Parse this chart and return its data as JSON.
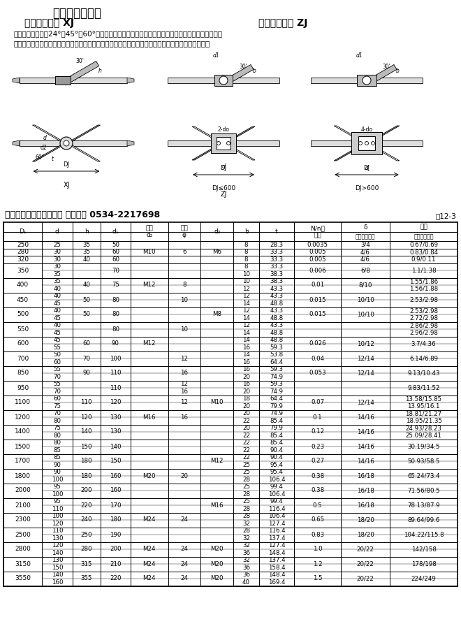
{
  "title": "斜叶桨式搅拌器",
  "subtitle_left": "斜叶整体桨式 XJ",
  "subtitle_right": "斜叶可拆桨式 ZJ",
  "desc1": "此搅拌器桨叶可成24°、45°或60°倾角，有轴向分流，径向分流，流型比平直叶桨式复杂，排出能量",
  "desc2": "比平直桨高，综合效果更好，适用过程相同，因此应用频率比平直叶桨式高，运行条件同平直叶桨式。",
  "table_title": "斜叶桨式搅拌器主要尺寸 鸿达搅拌 0534-2217698",
  "table_number": "表12-3",
  "bg_color": "#ffffff",
  "rows_data": [
    [
      "250",
      [
        "25"
      ],
      [
        "35"
      ],
      [
        "50"
      ],
      [
        ""
      ],
      [
        ""
      ],
      [
        ""
      ],
      [
        "8"
      ],
      [
        "28.3"
      ],
      [
        "0.0035"
      ],
      [
        "3/4"
      ],
      [
        "0.67/0.69"
      ]
    ],
    [
      "280",
      [
        "30"
      ],
      [
        "35"
      ],
      [
        "60"
      ],
      [
        "M10"
      ],
      [
        "6"
      ],
      [
        "M6"
      ],
      [
        "8"
      ],
      [
        "33.3"
      ],
      [
        "0.005"
      ],
      [
        "4/6"
      ],
      [
        "0.83/0.84"
      ]
    ],
    [
      "320",
      [
        "30"
      ],
      [
        "40"
      ],
      [
        "60"
      ],
      [
        ""
      ],
      [
        ""
      ],
      [
        ""
      ],
      [
        "8"
      ],
      [
        "33.3"
      ],
      [
        "0.005"
      ],
      [
        "4/6"
      ],
      [
        "0.9/0.11"
      ]
    ],
    [
      "350",
      [
        "30",
        "35"
      ],
      [
        ""
      ],
      [
        "70"
      ],
      [
        ""
      ],
      [
        ""
      ],
      [
        ""
      ],
      [
        "8",
        "10"
      ],
      [
        "33.3",
        "38.3"
      ],
      [
        "0.006"
      ],
      [
        "6/8"
      ],
      [
        "1.1/1.38"
      ]
    ],
    [
      "400",
      [
        "35",
        "40"
      ],
      [
        "40"
      ],
      [
        "75"
      ],
      [
        "M12"
      ],
      [
        "8"
      ],
      [
        ""
      ],
      [
        "10",
        "12"
      ],
      [
        "38.3",
        "43.3"
      ],
      [
        "0.01"
      ],
      [
        "8/10"
      ],
      [
        "1.55/1.86",
        "1.56/1.88"
      ]
    ],
    [
      "450",
      [
        "40",
        "45"
      ],
      [
        "50"
      ],
      [
        "80"
      ],
      [
        ""
      ],
      [
        "10"
      ],
      [
        ""
      ],
      [
        "12",
        "14"
      ],
      [
        "43.3",
        "48.8"
      ],
      [
        "0.015"
      ],
      [
        "10/10"
      ],
      [
        "2.53/2.98"
      ]
    ],
    [
      "500",
      [
        "40",
        "45"
      ],
      [
        "50"
      ],
      [
        "80"
      ],
      [
        ""
      ],
      [
        ""
      ],
      [
        "M8"
      ],
      [
        "12",
        "14"
      ],
      [
        "43.3",
        "48.8"
      ],
      [
        "0.015"
      ],
      [
        "10/10"
      ],
      [
        "2.53/2.98",
        "2.72/2.98"
      ]
    ],
    [
      "550",
      [
        "40",
        "45"
      ],
      [
        ""
      ],
      [
        "80"
      ],
      [
        ""
      ],
      [
        "10"
      ],
      [
        ""
      ],
      [
        "12",
        "14"
      ],
      [
        "43.3",
        "48.8"
      ],
      [
        ""
      ],
      [
        ""
      ],
      [
        "2.86/2.98",
        "2.96/2.98"
      ]
    ],
    [
      "600",
      [
        "45",
        "55"
      ],
      [
        "60"
      ],
      [
        "90"
      ],
      [
        "M12"
      ],
      [
        ""
      ],
      [
        ""
      ],
      [
        "14",
        "16"
      ],
      [
        "48.8",
        "59.3"
      ],
      [
        "0.026"
      ],
      [
        "10/12"
      ],
      [
        "3.7/4.36"
      ]
    ],
    [
      "700",
      [
        "50",
        "60"
      ],
      [
        "70"
      ],
      [
        "100"
      ],
      [
        ""
      ],
      [
        "12"
      ],
      [
        ""
      ],
      [
        "14",
        "16"
      ],
      [
        "53.8",
        "64.4"
      ],
      [
        "0.04"
      ],
      [
        "12/14"
      ],
      [
        "6.14/6.89"
      ]
    ],
    [
      "850",
      [
        "55",
        "70"
      ],
      [
        "90"
      ],
      [
        "110"
      ],
      [
        ""
      ],
      [
        "16"
      ],
      [
        ""
      ],
      [
        "16",
        "20"
      ],
      [
        "59.3",
        "74.9"
      ],
      [
        "0.053"
      ],
      [
        "12/14"
      ],
      [
        "9.13/10.43"
      ]
    ],
    [
      "950",
      [
        "55",
        "70"
      ],
      [
        ""
      ],
      [
        "110"
      ],
      [
        ""
      ],
      [
        "12",
        "16"
      ],
      [
        ""
      ],
      [
        "16",
        "20"
      ],
      [
        "59.3",
        "74.9"
      ],
      [
        ""
      ],
      [
        ""
      ],
      [
        "9.83/11.52"
      ]
    ],
    [
      "1100",
      [
        "60",
        "75"
      ],
      [
        "110"
      ],
      [
        "120"
      ],
      [
        ""
      ],
      [
        "12"
      ],
      [
        "M10"
      ],
      [
        "18",
        "20"
      ],
      [
        "64.4",
        "79.9"
      ],
      [
        "0.07"
      ],
      [
        "12/14"
      ],
      [
        "13.58/15.85",
        "13.95/16.1"
      ]
    ],
    [
      "1200",
      [
        "70",
        "80"
      ],
      [
        "120"
      ],
      [
        "130"
      ],
      [
        "M16"
      ],
      [
        "16"
      ],
      [
        ""
      ],
      [
        "20",
        "22"
      ],
      [
        "74.9",
        "85.4"
      ],
      [
        "0.1"
      ],
      [
        "14/16"
      ],
      [
        "18.81/21.27",
        "18.95/21.35"
      ]
    ],
    [
      "1400",
      [
        "75",
        "80"
      ],
      [
        "140"
      ],
      [
        "130"
      ],
      [
        ""
      ],
      [
        ""
      ],
      [
        ""
      ],
      [
        "20",
        "22"
      ],
      [
        "79.9",
        "85.4"
      ],
      [
        "0.12"
      ],
      [
        "14/16"
      ],
      [
        "24.93/28.23",
        "25.09/28.41"
      ]
    ],
    [
      "1500",
      [
        "80",
        "85"
      ],
      [
        "150"
      ],
      [
        "140"
      ],
      [
        ""
      ],
      [
        ""
      ],
      [
        ""
      ],
      [
        "22",
        "22"
      ],
      [
        "85.4",
        "90.4"
      ],
      [
        "0.23"
      ],
      [
        "14/16"
      ],
      [
        "30.19/34.5"
      ]
    ],
    [
      "1700",
      [
        "85",
        "90"
      ],
      [
        "180"
      ],
      [
        "150"
      ],
      [
        ""
      ],
      [
        ""
      ],
      [
        "M12"
      ],
      [
        "22",
        "25"
      ],
      [
        "90.4",
        "95.4"
      ],
      [
        "0.27"
      ],
      [
        "14/16"
      ],
      [
        "50.93/58.5"
      ]
    ],
    [
      "1800",
      [
        "90",
        "100"
      ],
      [
        "180"
      ],
      [
        "160"
      ],
      [
        "M20"
      ],
      [
        "20"
      ],
      [
        ""
      ],
      [
        "25",
        "28"
      ],
      [
        "95.4",
        "106.4"
      ],
      [
        "0.38"
      ],
      [
        "16/18"
      ],
      [
        "65.24/73.4"
      ]
    ],
    [
      "2000",
      [
        "95",
        "100"
      ],
      [
        "200"
      ],
      [
        "160"
      ],
      [
        ""
      ],
      [
        ""
      ],
      [
        ""
      ],
      [
        "25",
        "28"
      ],
      [
        "99.4",
        "106.4"
      ],
      [
        "0.38"
      ],
      [
        "16/18"
      ],
      [
        "71.56/80.5"
      ]
    ],
    [
      "2100",
      [
        "95",
        "110"
      ],
      [
        "220"
      ],
      [
        "170"
      ],
      [
        ""
      ],
      [
        ""
      ],
      [
        "M16"
      ],
      [
        "25",
        "28"
      ],
      [
        "99.4",
        "116.4"
      ],
      [
        "0.5"
      ],
      [
        "16/18"
      ],
      [
        "78.13/87.9"
      ]
    ],
    [
      "2300",
      [
        "100",
        "120"
      ],
      [
        "240"
      ],
      [
        "180"
      ],
      [
        "M24"
      ],
      [
        "24"
      ],
      [
        ""
      ],
      [
        "28",
        "32"
      ],
      [
        "106.4",
        "127.4"
      ],
      [
        "0.65"
      ],
      [
        "18/20"
      ],
      [
        "89.64/99.6"
      ]
    ],
    [
      "2500",
      [
        "110",
        "130"
      ],
      [
        "250"
      ],
      [
        "190"
      ],
      [
        ""
      ],
      [
        ""
      ],
      [
        ""
      ],
      [
        "28",
        "32"
      ],
      [
        "116.4",
        "137.4"
      ],
      [
        "0.83"
      ],
      [
        "18/20"
      ],
      [
        "104.22/115.8"
      ]
    ],
    [
      "2800",
      [
        "120",
        "140"
      ],
      [
        "280"
      ],
      [
        "200"
      ],
      [
        "M24"
      ],
      [
        "24"
      ],
      [
        "M20"
      ],
      [
        "32",
        "36"
      ],
      [
        "127.4",
        "148.4"
      ],
      [
        "1.0"
      ],
      [
        "20/22"
      ],
      [
        "142/158"
      ]
    ],
    [
      "3150",
      [
        "130",
        "150"
      ],
      [
        "315"
      ],
      [
        "210"
      ],
      [
        "M24"
      ],
      [
        "24"
      ],
      [
        "M20"
      ],
      [
        "32",
        "36"
      ],
      [
        "137.4",
        "158.4"
      ],
      [
        "1.2"
      ],
      [
        "20/22"
      ],
      [
        "178/198"
      ]
    ],
    [
      "3550",
      [
        "140",
        "160"
      ],
      [
        "355"
      ],
      [
        "220"
      ],
      [
        "M24"
      ],
      [
        "24"
      ],
      [
        "M20"
      ],
      [
        "36",
        "40"
      ],
      [
        "148.4",
        "169.4"
      ],
      [
        "1.5"
      ],
      [
        "20/22"
      ],
      [
        "224/249"
      ]
    ]
  ]
}
